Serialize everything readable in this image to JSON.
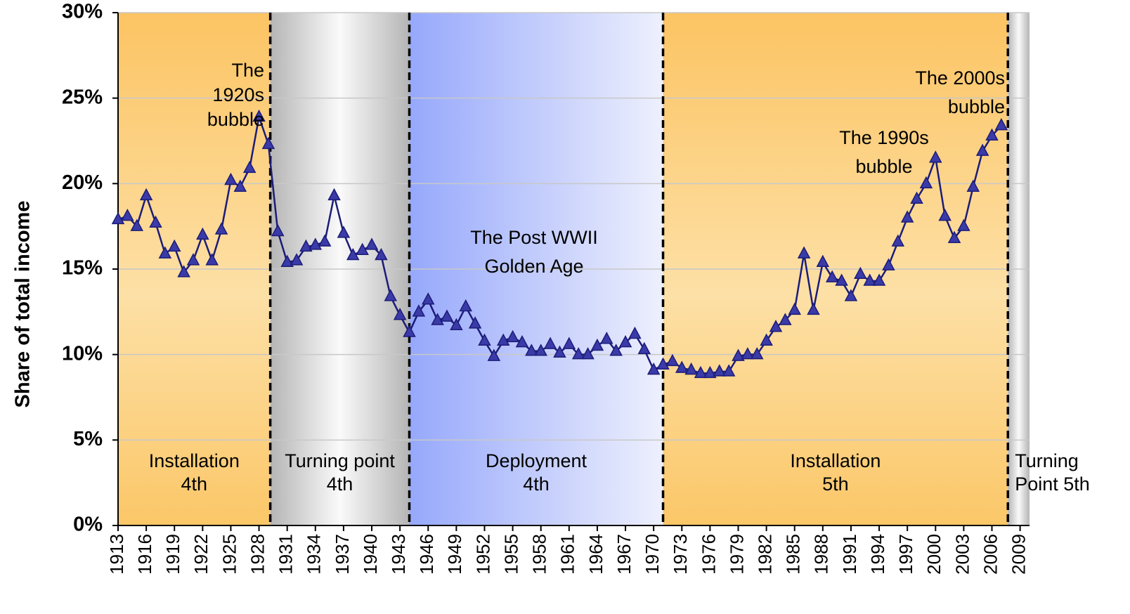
{
  "chart_data": {
    "type": "line",
    "ylabel": "Share of total income",
    "x": [
      1913,
      1914,
      1915,
      1916,
      1917,
      1918,
      1919,
      1920,
      1921,
      1922,
      1923,
      1924,
      1925,
      1926,
      1927,
      1928,
      1929,
      1930,
      1931,
      1932,
      1933,
      1934,
      1935,
      1936,
      1937,
      1938,
      1939,
      1940,
      1941,
      1942,
      1943,
      1944,
      1945,
      1946,
      1947,
      1948,
      1949,
      1950,
      1951,
      1952,
      1953,
      1954,
      1955,
      1956,
      1957,
      1958,
      1959,
      1960,
      1961,
      1962,
      1963,
      1964,
      1965,
      1966,
      1967,
      1968,
      1969,
      1970,
      1971,
      1972,
      1973,
      1974,
      1975,
      1976,
      1977,
      1978,
      1979,
      1980,
      1981,
      1982,
      1983,
      1984,
      1985,
      1986,
      1987,
      1988,
      1989,
      1990,
      1991,
      1992,
      1993,
      1994,
      1995,
      1996,
      1997,
      1998,
      1999,
      2000,
      2001,
      2002,
      2003,
      2004,
      2005,
      2006,
      2007
    ],
    "series": [
      {
        "color": "#1c1c78",
        "values": [
          17.9,
          18.1,
          17.5,
          19.3,
          17.7,
          15.9,
          16.3,
          14.8,
          15.5,
          17.0,
          15.5,
          17.3,
          20.2,
          19.8,
          20.9,
          23.9,
          22.3,
          17.2,
          15.4,
          15.5,
          16.3,
          16.4,
          16.6,
          19.3,
          17.1,
          15.8,
          16.1,
          16.4,
          15.8,
          13.4,
          12.3,
          11.3,
          12.5,
          13.2,
          12.0,
          12.2,
          11.7,
          12.8,
          11.8,
          10.8,
          9.9,
          10.8,
          11.0,
          10.7,
          10.2,
          10.2,
          10.6,
          10.1,
          10.6,
          10.0,
          10.0,
          10.5,
          10.9,
          10.2,
          10.7,
          11.2,
          10.3,
          9.1,
          9.4,
          9.6,
          9.2,
          9.1,
          8.9,
          8.9,
          9.0,
          9.0,
          9.9,
          10.0,
          10.0,
          10.8,
          11.6,
          12.0,
          12.6,
          15.9,
          12.6,
          15.4,
          14.5,
          14.3,
          13.4,
          14.7,
          14.3,
          14.3,
          15.2,
          16.6,
          18.0,
          19.1,
          20.0,
          21.5,
          18.1,
          16.8,
          17.5,
          19.8,
          21.9,
          22.8,
          23.4
        ]
      }
    ],
    "xlim": [
      1913,
      2010
    ],
    "xticks": [
      1913,
      1916,
      1919,
      1922,
      1925,
      1928,
      1931,
      1934,
      1937,
      1940,
      1943,
      1946,
      1949,
      1952,
      1955,
      1958,
      1961,
      1964,
      1967,
      1970,
      1973,
      1976,
      1979,
      1982,
      1985,
      1988,
      1991,
      1994,
      1997,
      2000,
      2003,
      2006,
      2009
    ],
    "ylim": [
      0,
      30
    ],
    "yticks": [
      {
        "value": 0,
        "label": "0%"
      },
      {
        "value": 5,
        "label": "5%"
      },
      {
        "value": 10,
        "label": "10%"
      },
      {
        "value": 15,
        "label": "15%"
      },
      {
        "value": 20,
        "label": "20%"
      },
      {
        "value": 25,
        "label": "25%"
      },
      {
        "value": 30,
        "label": "30%"
      }
    ],
    "grid": true,
    "periods": [
      {
        "start": 1913,
        "end": 1929.2,
        "lines": [
          "Installation",
          "4th"
        ]
      },
      {
        "start": 1929.2,
        "end": 1944,
        "lines": [
          "Turning point",
          "4th"
        ]
      },
      {
        "start": 1944,
        "end": 1971,
        "lines": [
          "Deployment",
          "4th"
        ]
      },
      {
        "start": 1971,
        "end": 2007.7,
        "lines": [
          "Installation",
          "5th"
        ]
      },
      {
        "start": 2007.7,
        "end": 2010,
        "lines": [
          "Turning",
          "Point 5th"
        ]
      }
    ],
    "annotations": [
      {
        "lines": [
          "The",
          "1920s",
          "bubble"
        ]
      },
      {
        "lines": [
          "The 2000s",
          "bubble"
        ]
      },
      {
        "lines": [
          "The 1990s",
          "bubble"
        ]
      },
      {
        "lines": [
          "The Post WWII",
          "Golden Age"
        ]
      }
    ]
  }
}
